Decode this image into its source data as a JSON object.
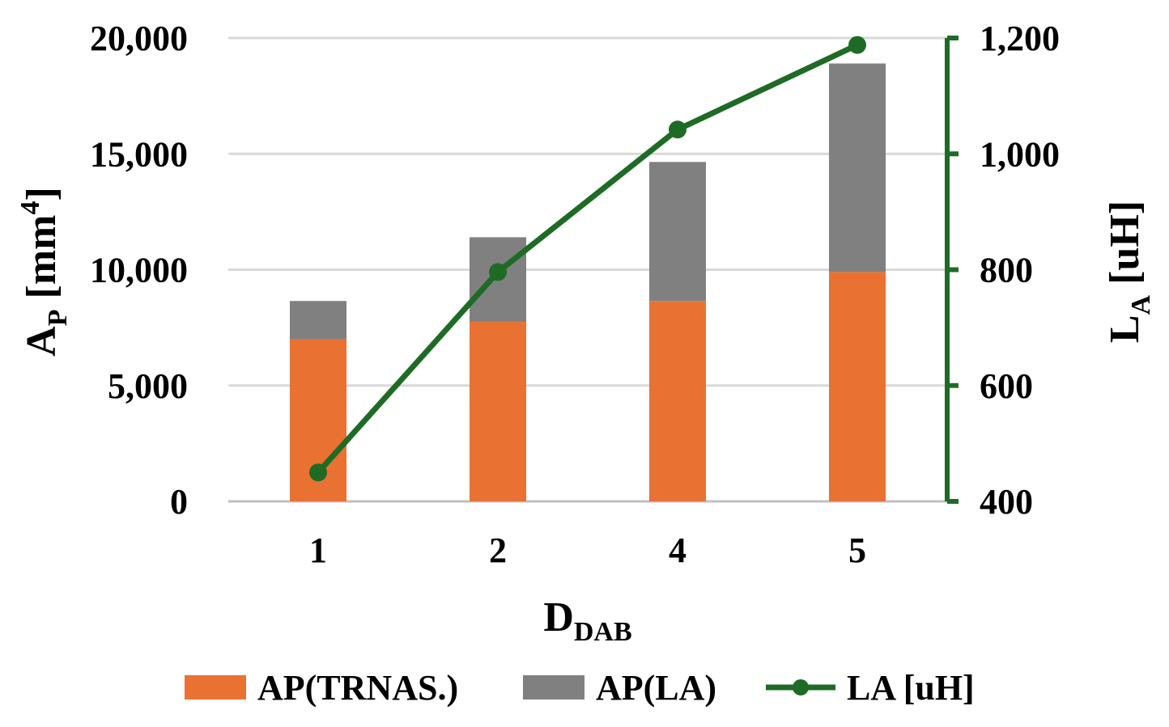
{
  "chart_data": {
    "type": "bar",
    "stacked": true,
    "categories": [
      "1",
      "2",
      "4",
      "5"
    ],
    "series": [
      {
        "name": "AP(TRNAS.)",
        "axis": "left",
        "color": "#E97132",
        "values": [
          7000,
          7750,
          8650,
          9900
        ]
      },
      {
        "name": "AP(LA)",
        "axis": "left",
        "color": "#808080",
        "values": [
          1650,
          3650,
          6000,
          9000
        ]
      },
      {
        "name": "LA [uH]",
        "axis": "right",
        "type": "line",
        "color": "#1E6B25",
        "values": [
          450,
          796,
          1042,
          1188
        ]
      }
    ],
    "y_left": {
      "label_main": "A",
      "label_sub": "P",
      "label_rest": " [mm",
      "label_sup": "4",
      "label_close": "]",
      "min": 0,
      "max": 20000,
      "ticks": [
        0,
        5000,
        10000,
        15000,
        20000
      ],
      "tick_labels": [
        "0",
        "5,000",
        "10,000",
        "15,000",
        "20,000"
      ]
    },
    "y_right": {
      "label_main": "L",
      "label_sub": "A",
      "label_rest": " [uH]",
      "min": 400,
      "max": 1200,
      "ticks": [
        400,
        600,
        800,
        1000,
        1200
      ],
      "tick_labels": [
        "400",
        "600",
        "800",
        "1,000",
        "1,200"
      ],
      "color": "#1E6B25"
    },
    "x_axis": {
      "label_main": "D",
      "label_sub": "DAB"
    },
    "grid": true,
    "legend_position": "bottom"
  }
}
